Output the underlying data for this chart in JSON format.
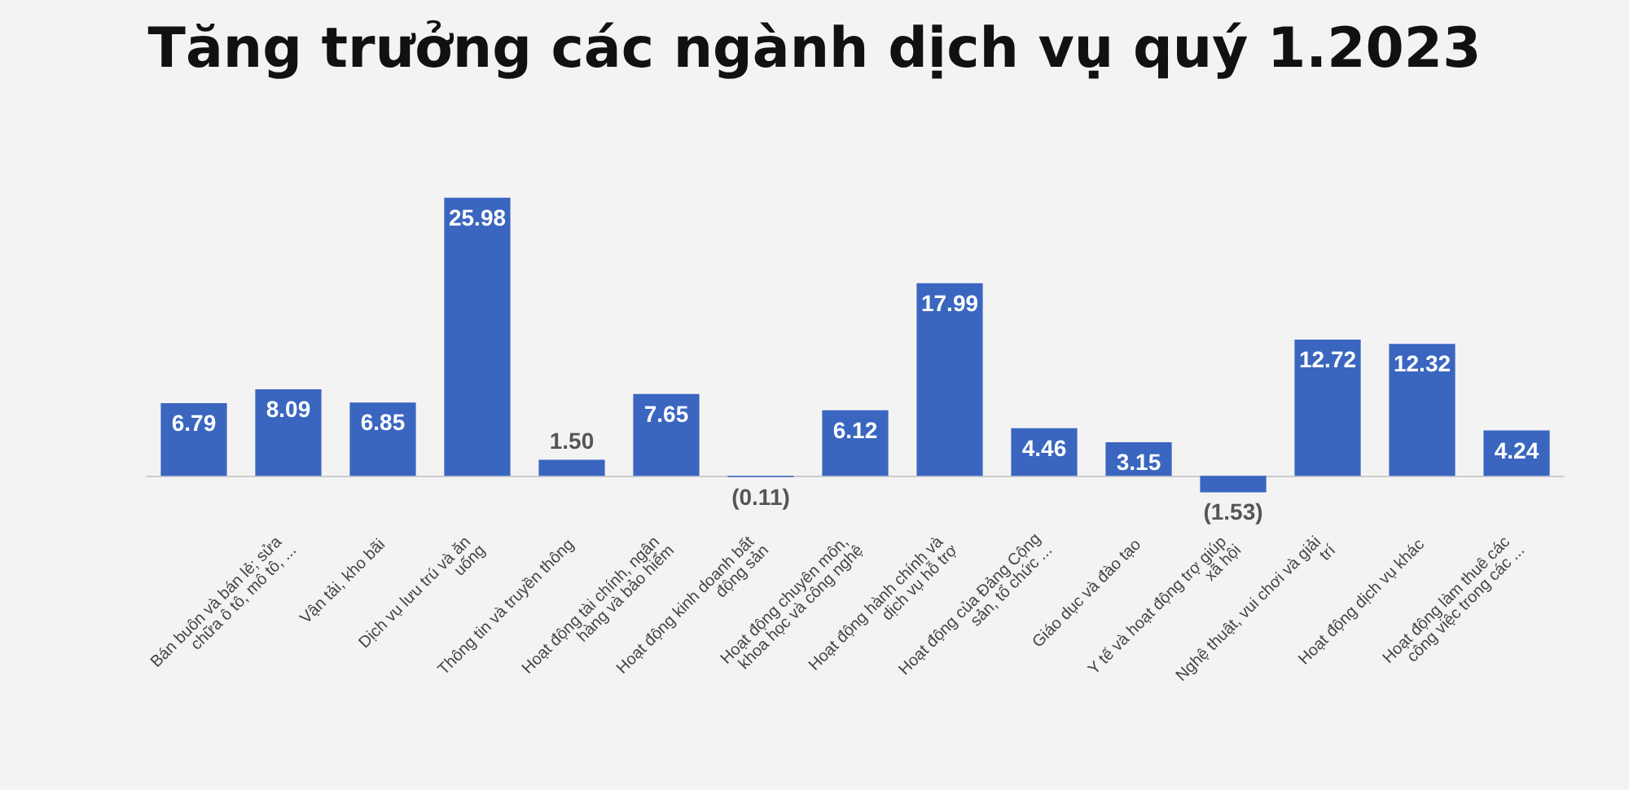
{
  "chart_data": {
    "type": "bar",
    "title": "Tăng trưởng các ngành dịch vụ quý 1.2023",
    "categories": [
      null,
      "Bán buôn và bán lẻ; sửa chữa ô tô, mô tô, ...",
      "Vận tải, kho bãi",
      "Dịch vụ lưu trú và ăn uống",
      "Thông tin và truyền thông",
      "Hoạt động tài chính, ngân hàng và bảo hiểm",
      "Hoạt động kinh doanh bất động sản",
      "Hoạt động chuyên môn, khoa học và công nghệ",
      "Hoạt động hành chính và dịch vụ hỗ trợ",
      "Hoạt động của Đảng Cộng sản, tổ chức ...",
      "Giáo dục và đào tạo",
      "Y tế và hoạt động trợ giúp xã hội",
      "Nghệ thuật, vui chơi và giải trí",
      "Hoạt động dịch vụ khác",
      "Hoạt động làm thuê các công việc trong các ..."
    ],
    "values": [
      6.79,
      8.09,
      6.85,
      25.98,
      1.5,
      7.65,
      -0.11,
      6.12,
      17.99,
      4.46,
      3.15,
      -1.53,
      12.72,
      12.32,
      4.24
    ],
    "value_labels": [
      "6.79",
      "8.09",
      "6.85",
      "25.98",
      "1.50",
      "7.65",
      "(0.11)",
      "6.12",
      "17.99",
      "4.46",
      "3.15",
      "(1.53)",
      "12.72",
      "12.32",
      "4.24"
    ],
    "color": "#3a66c0"
  }
}
